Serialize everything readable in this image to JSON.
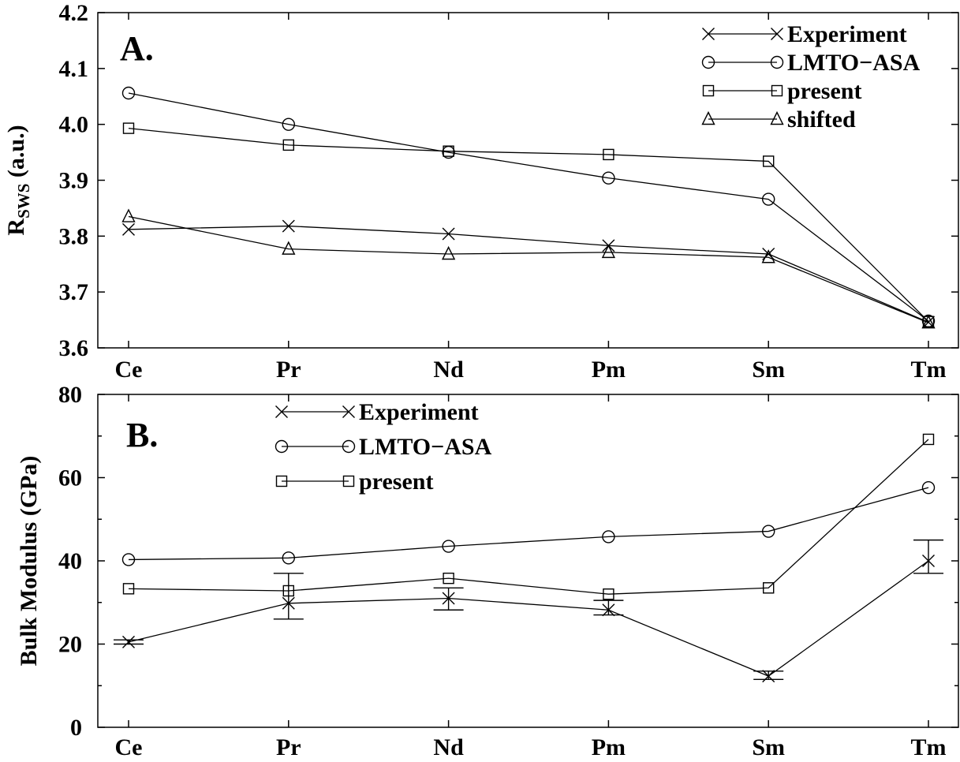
{
  "chart_data": [
    {
      "type": "line",
      "panel_label": "A.",
      "ylabel": "R",
      "ylabel_sub": "SWS",
      "ylabel_unit": " (a.u.)",
      "categories": [
        "Ce",
        "Pr",
        "Nd",
        "Pm",
        "Sm",
        "Tm"
      ],
      "ylim": [
        3.6,
        4.2
      ],
      "yticks": [
        3.6,
        3.7,
        3.8,
        3.9,
        4.0,
        4.1,
        4.2
      ],
      "ytick_labels": [
        "3.6",
        "3.7",
        "3.8",
        "3.9",
        "4.0",
        "4.1",
        "4.2"
      ],
      "legend_position": "top-right",
      "series": [
        {
          "name": "Experiment",
          "marker": "x",
          "values": [
            3.812,
            3.818,
            3.804,
            3.783,
            3.768,
            3.646
          ]
        },
        {
          "name": "LMTO−ASA",
          "marker": "circle",
          "values": [
            4.056,
            4.0,
            3.95,
            3.904,
            3.866,
            3.648
          ]
        },
        {
          "name": "present",
          "marker": "square",
          "values": [
            3.993,
            3.963,
            3.952,
            3.946,
            3.934,
            3.647
          ]
        },
        {
          "name": "shifted",
          "marker": "triangle",
          "values": [
            3.835,
            3.777,
            3.768,
            3.771,
            3.762,
            3.645
          ]
        }
      ]
    },
    {
      "type": "line",
      "panel_label": "B.",
      "ylabel": "Bulk Modulus (GPa)",
      "categories": [
        "Ce",
        "Pr",
        "Nd",
        "Pm",
        "Sm",
        "Tm"
      ],
      "ylim": [
        0,
        80
      ],
      "yticks": [
        0,
        20,
        40,
        60,
        80
      ],
      "ytick_labels": [
        "0",
        "20",
        "40",
        "60",
        "80"
      ],
      "legend_position": "top-left",
      "series": [
        {
          "name": "Experiment",
          "marker": "x",
          "values": [
            20.5,
            29.8,
            31.0,
            28.2,
            12.3,
            40.0
          ],
          "errors": [
            [
              20.0,
              21.0
            ],
            [
              26.0,
              37.0
            ],
            [
              28.2,
              33.5
            ],
            [
              27.0,
              30.5
            ],
            [
              11.5,
              13.5
            ],
            [
              37.0,
              45.0
            ]
          ]
        },
        {
          "name": "LMTO−ASA",
          "marker": "circle",
          "values": [
            40.3,
            40.7,
            43.5,
            45.8,
            47.1,
            57.6
          ]
        },
        {
          "name": "present",
          "marker": "square",
          "values": [
            33.3,
            32.8,
            35.8,
            32.0,
            33.5,
            69.2
          ]
        }
      ]
    }
  ]
}
